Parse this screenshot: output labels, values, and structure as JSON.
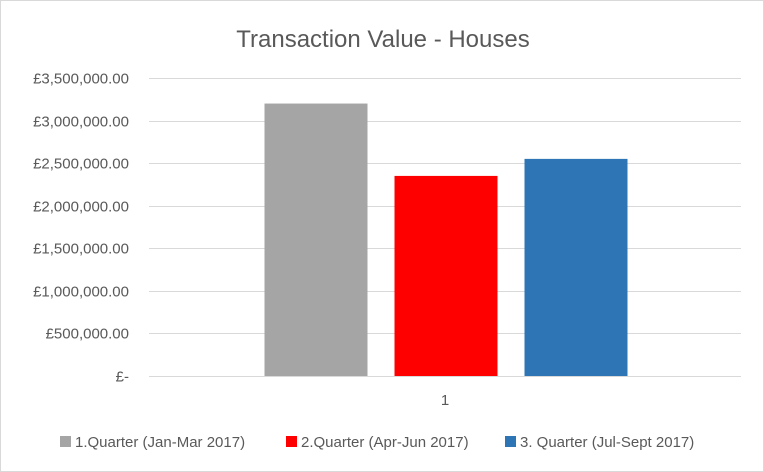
{
  "chart_data": {
    "type": "bar",
    "title": "Transaction Value - Houses",
    "categories": [
      "1"
    ],
    "series": [
      {
        "name": "1.Quarter (Jan-Mar 2017)",
        "values": [
          3200000
        ],
        "color": "#a5a5a5"
      },
      {
        "name": "2.Quarter (Apr-Jun 2017)",
        "values": [
          2350000
        ],
        "color": "#ff0000"
      },
      {
        "name": "3. Quarter (Jul-Sept 2017)",
        "values": [
          2550000
        ],
        "color": "#2e75b6"
      }
    ],
    "ylim": [
      0,
      3500000
    ],
    "ytick_values": [
      0,
      500000,
      1000000,
      1500000,
      2000000,
      2500000,
      3000000,
      3500000
    ],
    "ytick_labels": [
      "£-",
      "£500,000.00",
      "£1,000,000.00",
      "£1,500,000.00",
      "£2,000,000.00",
      "£2,500,000.00",
      "£3,000,000.00",
      "£3,500,000.00"
    ],
    "xlabel": "",
    "ylabel": "",
    "grid": true,
    "legend_position": "bottom"
  }
}
